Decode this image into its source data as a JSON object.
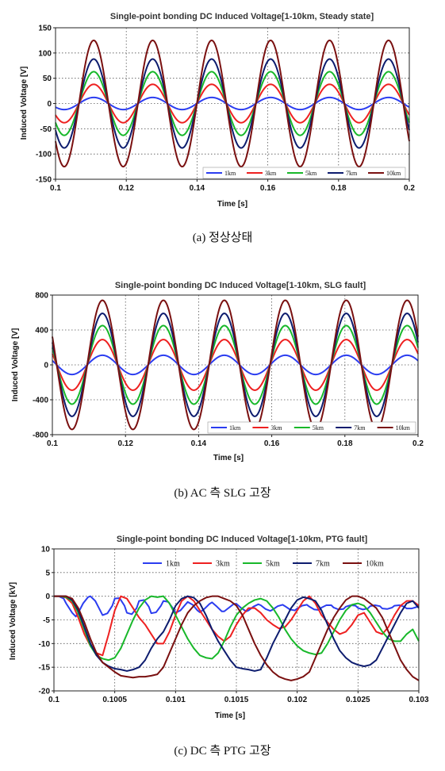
{
  "chart_data": [
    {
      "type": "line",
      "title": "Single-point bonding DC Induced Voltage[1-10km, Steady state]",
      "xlabel": "Time [s]",
      "ylabel": "Induced Voltage [V]",
      "xlim": [
        0.1,
        0.2
      ],
      "ylim": [
        -150,
        150
      ],
      "xticks": [
        0.1,
        0.12,
        0.14,
        0.16,
        0.18,
        0.2
      ],
      "xtick_labels": [
        "0.1",
        "0.12",
        "0.14",
        "0.16",
        "0.18",
        "0.2"
      ],
      "yticks": [
        -150,
        -100,
        -50,
        0,
        50,
        100,
        150
      ],
      "ytick_labels": [
        "-150",
        "-100",
        "-50",
        "0",
        "50",
        "100",
        "150"
      ],
      "grid": "dotted",
      "legend_position": "bottom-right",
      "waveform": "sine",
      "frequency_hz": 60,
      "first_peak_time_s": 0.1108,
      "series": [
        {
          "name": "1km",
          "color": "#2b3df0",
          "amplitude": 12
        },
        {
          "name": "3km",
          "color": "#ee2020",
          "amplitude": 38
        },
        {
          "name": "5km",
          "color": "#18b82a",
          "amplitude": 63
        },
        {
          "name": "7km",
          "color": "#0d1c6e",
          "amplitude": 88
        },
        {
          "name": "10km",
          "color": "#7a1010",
          "amplitude": 125
        }
      ]
    },
    {
      "type": "line",
      "title": "Single-point bonding DC Induced Voltage[1-10km, SLG fault]",
      "xlabel": "Time [s]",
      "ylabel": "Induced Voltage [V]",
      "xlim": [
        0.1,
        0.2
      ],
      "ylim": [
        -800,
        800
      ],
      "xticks": [
        0.1,
        0.12,
        0.14,
        0.16,
        0.18,
        0.2
      ],
      "xtick_labels": [
        "0.1",
        "0.12",
        "0.14",
        "0.16",
        "0.18",
        "0.2"
      ],
      "yticks": [
        -800,
        -400,
        0,
        400,
        800
      ],
      "ytick_labels": [
        "-800",
        "-400",
        "0",
        "400",
        "800"
      ],
      "grid": "dotted",
      "legend_position": "bottom-right",
      "waveform": "sine",
      "frequency_hz": 60,
      "first_peak_time_s": 0.1137,
      "series": [
        {
          "name": "1km",
          "color": "#2b3df0",
          "amplitude": 110
        },
        {
          "name": "3km",
          "color": "#ee2020",
          "amplitude": 290
        },
        {
          "name": "5km",
          "color": "#18b82a",
          "amplitude": 450
        },
        {
          "name": "7km",
          "color": "#0d1c6e",
          "amplitude": 590
        },
        {
          "name": "10km",
          "color": "#7a1010",
          "amplitude": 740
        }
      ]
    },
    {
      "type": "line",
      "title": "Single-point bonding DC Induced Voltage[1-10km, PTG fault]",
      "xlabel": "Time [s]",
      "ylabel": "Induced Voltage [kV]",
      "xlim": [
        0.1,
        0.103
      ],
      "ylim": [
        -20,
        10
      ],
      "xticks": [
        0.1,
        0.1005,
        0.101,
        0.1015,
        0.102,
        0.1025,
        0.103
      ],
      "xtick_labels": [
        "0.1",
        "0.1005",
        "0.101",
        "0.1015",
        "0.102",
        "0.1025",
        "0.103"
      ],
      "yticks": [
        -20,
        -15,
        -10,
        -5,
        0,
        5,
        10
      ],
      "ytick_labels": [
        "-20",
        "-15",
        "-10",
        "-5",
        "0",
        "5",
        "10"
      ],
      "grid": "dotted",
      "legend_position": "top",
      "series": [
        {
          "name": "1km",
          "color": "#2b3df0",
          "x": [
            0.1,
            0.10004,
            0.10008,
            0.1001,
            0.10015,
            0.10018,
            0.1002,
            0.10024,
            0.10028,
            0.1003,
            0.10034,
            0.10038,
            0.1004,
            0.10044,
            0.10048,
            0.1005,
            0.10054,
            0.10058,
            0.1006,
            0.10064,
            0.10068,
            0.1007,
            0.10074,
            0.10078,
            0.1008,
            0.10084,
            0.10088,
            0.1009,
            0.10094,
            0.10098,
            0.101,
            0.10104,
            0.10108,
            0.1011,
            0.10114,
            0.10118,
            0.1012,
            0.10124,
            0.10128,
            0.1013,
            0.10134,
            0.10138,
            0.1014,
            0.10144,
            0.10148,
            0.1015,
            0.10154,
            0.10158,
            0.1016,
            0.10164,
            0.10168,
            0.1017,
            0.10174,
            0.10178,
            0.1018,
            0.10184,
            0.10188,
            0.1019,
            0.10194,
            0.10198,
            0.102,
            0.10204,
            0.10208,
            0.1021,
            0.10214,
            0.10218,
            0.1022,
            0.10224,
            0.10228,
            0.1023,
            0.10234,
            0.10238,
            0.1024,
            0.10244,
            0.10248,
            0.1025,
            0.10254,
            0.10258,
            0.1026,
            0.10264,
            0.10268,
            0.1027,
            0.10274,
            0.10278,
            0.1028,
            0.10284,
            0.10288,
            0.1029,
            0.10294,
            0.10298,
            0.103
          ],
          "y": [
            0,
            0,
            -0.5,
            -1.5,
            -3.5,
            -4.3,
            -3.5,
            -1.5,
            -0.2,
            0,
            -1.0,
            -3.0,
            -4.0,
            -3.6,
            -2.0,
            -0.5,
            -0.4,
            -2.0,
            -3.5,
            -3.8,
            -2.5,
            -1.0,
            -0.8,
            -2.2,
            -3.6,
            -3.4,
            -2.0,
            -1.0,
            -1.2,
            -2.6,
            -3.5,
            -3.0,
            -1.8,
            -1.2,
            -1.8,
            -3.0,
            -3.4,
            -2.6,
            -1.6,
            -1.3,
            -2.2,
            -3.2,
            -3.2,
            -2.4,
            -1.6,
            -1.6,
            -2.5,
            -3.2,
            -3.0,
            -2.2,
            -1.7,
            -1.9,
            -2.7,
            -3.1,
            -2.8,
            -2.1,
            -1.8,
            -2.1,
            -2.8,
            -3.0,
            -2.6,
            -2.0,
            -1.8,
            -2.2,
            -2.8,
            -2.9,
            -2.4,
            -1.9,
            -1.9,
            -2.4,
            -2.8,
            -2.7,
            -2.2,
            -1.9,
            -2.0,
            -2.5,
            -2.8,
            -2.6,
            -2.1,
            -1.9,
            -2.1,
            -2.6,
            -2.7,
            -2.4,
            -2.0,
            -1.9,
            -2.2,
            -2.6,
            -2.6,
            -2.3,
            -2.0
          ]
        },
        {
          "name": "3km",
          "color": "#ee2020",
          "x": [
            0.1,
            0.10005,
            0.1001,
            0.10015,
            0.1002,
            0.10025,
            0.1003,
            0.10035,
            0.1004,
            0.10045,
            0.1005,
            0.10055,
            0.1006,
            0.10065,
            0.1007,
            0.10075,
            0.1008,
            0.10085,
            0.1009,
            0.10095,
            0.101,
            0.10105,
            0.1011,
            0.10115,
            0.1012,
            0.10125,
            0.1013,
            0.10135,
            0.1014,
            0.10145,
            0.1015,
            0.10155,
            0.1016,
            0.10165,
            0.1017,
            0.10175,
            0.1018,
            0.10185,
            0.1019,
            0.10195,
            0.102,
            0.10205,
            0.1021,
            0.10215,
            0.1022,
            0.10225,
            0.1023,
            0.10235,
            0.1024,
            0.10245,
            0.1025,
            0.10255,
            0.1026,
            0.10265,
            0.1027,
            0.10275,
            0.1028,
            0.10285,
            0.1029,
            0.10295,
            0.103
          ],
          "y": [
            0,
            0,
            -0.3,
            -1.5,
            -4.5,
            -8.0,
            -10.5,
            -12.0,
            -12.5,
            -8.0,
            -3.0,
            0,
            -0.5,
            -2.5,
            -4.5,
            -6.0,
            -8.0,
            -10.0,
            -10.0,
            -7.5,
            -4.0,
            -1.0,
            0,
            -1.0,
            -3.0,
            -5.0,
            -7.0,
            -8.5,
            -9.5,
            -8.5,
            -6.0,
            -4.0,
            -2.5,
            -2.5,
            -3.5,
            -5.0,
            -6.0,
            -6.8,
            -6.5,
            -5.0,
            -3.0,
            -1.0,
            0,
            -1.5,
            -4.0,
            -5.5,
            -7.0,
            -8.0,
            -7.5,
            -6.0,
            -4.0,
            -3.5,
            -5.5,
            -7.5,
            -8.0,
            -6.5,
            -4.0,
            -2.0,
            -1.0,
            -1.0,
            -2.0
          ]
        },
        {
          "name": "5km",
          "color": "#18b82a",
          "x": [
            0.1,
            0.10005,
            0.1001,
            0.10015,
            0.1002,
            0.10025,
            0.1003,
            0.10035,
            0.1004,
            0.10045,
            0.1005,
            0.10055,
            0.1006,
            0.10065,
            0.1007,
            0.10075,
            0.1008,
            0.10085,
            0.1009,
            0.10095,
            0.101,
            0.10105,
            0.1011,
            0.10115,
            0.1012,
            0.10125,
            0.1013,
            0.10135,
            0.1014,
            0.10145,
            0.1015,
            0.10155,
            0.1016,
            0.10165,
            0.1017,
            0.10175,
            0.1018,
            0.10185,
            0.1019,
            0.10195,
            0.102,
            0.10205,
            0.1021,
            0.10215,
            0.1022,
            0.10225,
            0.1023,
            0.10235,
            0.1024,
            0.10245,
            0.1025,
            0.10255,
            0.1026,
            0.10265,
            0.1027,
            0.10275,
            0.1028,
            0.10285,
            0.1029,
            0.10295,
            0.103
          ],
          "y": [
            0,
            0,
            -0.2,
            -1.0,
            -3.5,
            -7.0,
            -10.5,
            -12.5,
            -13.2,
            -13.5,
            -13.0,
            -11.0,
            -8.0,
            -5.0,
            -2.5,
            -0.8,
            0,
            -0.2,
            0,
            -1.5,
            -4.0,
            -6.5,
            -9.0,
            -11.0,
            -12.5,
            -13.0,
            -13.2,
            -12.0,
            -9.5,
            -6.5,
            -4.0,
            -2.5,
            -1.5,
            -0.8,
            -0.5,
            -1.0,
            -2.5,
            -4.5,
            -7.0,
            -9.0,
            -10.5,
            -11.5,
            -12.0,
            -12.3,
            -12.0,
            -10.0,
            -7.5,
            -5.0,
            -3.0,
            -1.8,
            -1.5,
            -2.0,
            -3.5,
            -5.5,
            -7.5,
            -9.0,
            -9.5,
            -9.5,
            -8.0,
            -7.0,
            -9.5
          ]
        },
        {
          "name": "7km",
          "color": "#0d1c6e",
          "x": [
            0.1,
            0.10005,
            0.1001,
            0.10015,
            0.1002,
            0.10025,
            0.1003,
            0.10035,
            0.1004,
            0.10045,
            0.1005,
            0.10055,
            0.1006,
            0.10065,
            0.1007,
            0.10075,
            0.1008,
            0.10085,
            0.1009,
            0.10095,
            0.101,
            0.10105,
            0.1011,
            0.10115,
            0.1012,
            0.10125,
            0.1013,
            0.10135,
            0.1014,
            0.10145,
            0.1015,
            0.10155,
            0.1016,
            0.10165,
            0.1017,
            0.10175,
            0.1018,
            0.10185,
            0.1019,
            0.10195,
            0.102,
            0.10205,
            0.1021,
            0.10215,
            0.1022,
            0.10225,
            0.1023,
            0.10235,
            0.1024,
            0.10245,
            0.1025,
            0.10255,
            0.1026,
            0.10265,
            0.1027,
            0.10275,
            0.1028,
            0.10285,
            0.1029,
            0.10295,
            0.103
          ],
          "y": [
            0,
            0,
            0,
            -0.8,
            -3.0,
            -6.5,
            -10.0,
            -12.5,
            -14.0,
            -14.8,
            -15.3,
            -15.5,
            -15.8,
            -15.5,
            -15.0,
            -13.5,
            -11.0,
            -9.0,
            -7.5,
            -5.0,
            -2.0,
            -0.5,
            0,
            -0.3,
            -1.5,
            -4.0,
            -7.0,
            -9.5,
            -11.5,
            -13.5,
            -15.0,
            -15.3,
            -15.5,
            -15.8,
            -15.5,
            -13.0,
            -10.0,
            -7.5,
            -5.0,
            -2.5,
            -0.8,
            -0.2,
            -0.5,
            -1.0,
            -3.0,
            -6.0,
            -9.0,
            -11.5,
            -13.0,
            -14.0,
            -14.5,
            -14.8,
            -14.5,
            -13.5,
            -11.0,
            -8.5,
            -6.0,
            -3.5,
            -1.5,
            -1.0,
            -2.5
          ]
        },
        {
          "name": "10km",
          "color": "#7a1010",
          "x": [
            0.1,
            0.10005,
            0.1001,
            0.10015,
            0.1002,
            0.10025,
            0.1003,
            0.10035,
            0.1004,
            0.10045,
            0.1005,
            0.10055,
            0.1006,
            0.10065,
            0.1007,
            0.10075,
            0.1008,
            0.10085,
            0.1009,
            0.10095,
            0.101,
            0.10105,
            0.1011,
            0.10115,
            0.1012,
            0.10125,
            0.1013,
            0.10135,
            0.1014,
            0.10145,
            0.1015,
            0.10155,
            0.1016,
            0.10165,
            0.1017,
            0.10175,
            0.1018,
            0.10185,
            0.1019,
            0.10195,
            0.102,
            0.10205,
            0.1021,
            0.10215,
            0.1022,
            0.10225,
            0.1023,
            0.10235,
            0.1024,
            0.10245,
            0.1025,
            0.10255,
            0.1026,
            0.10265,
            0.1027,
            0.10275,
            0.1028,
            0.10285,
            0.1029,
            0.10295,
            0.103
          ],
          "y": [
            0,
            0,
            0,
            -0.5,
            -2.5,
            -5.5,
            -9.0,
            -12.0,
            -14.0,
            -15.0,
            -16.0,
            -16.8,
            -17.0,
            -17.2,
            -17.0,
            -17.0,
            -16.8,
            -16.5,
            -15.0,
            -12.0,
            -9.0,
            -6.0,
            -3.5,
            -2.0,
            -1.0,
            -0.3,
            0,
            0,
            -0.5,
            -1.0,
            -2.0,
            -4.0,
            -7.0,
            -10.0,
            -12.5,
            -14.5,
            -16.0,
            -17.0,
            -17.5,
            -17.8,
            -17.5,
            -17.0,
            -16.0,
            -13.0,
            -10.0,
            -7.0,
            -4.5,
            -2.5,
            -0.8,
            0,
            0,
            -0.5,
            -1.5,
            -2.5,
            -4.5,
            -7.5,
            -10.5,
            -13.5,
            -15.5,
            -17.0,
            -17.8
          ]
        }
      ]
    }
  ],
  "captions": {
    "a": "(a)  정상상태",
    "b": "(b)  AC  측  SLG  고장",
    "c": "(c)  DC  측  PTG  고장"
  }
}
